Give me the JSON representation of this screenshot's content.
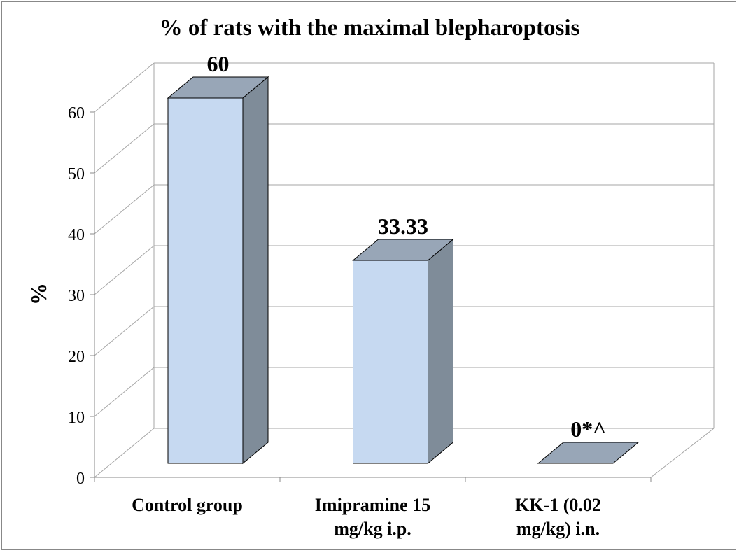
{
  "chart_data": {
    "type": "bar",
    "style": "3d",
    "title": "% of rats with the maximal blepharoptosis",
    "ylabel": "%",
    "xlabel": "",
    "categories": [
      "Control group",
      "Imipramine 15 mg/kg i.p.",
      "KK-1 (0.02 mg/kg) i.n."
    ],
    "category_lines": [
      [
        "Control group"
      ],
      [
        "Imipramine 15",
        "mg/kg i.p."
      ],
      [
        "KK-1 (0.02",
        "mg/kg) i.n."
      ]
    ],
    "values": [
      60,
      33.33,
      0
    ],
    "data_labels": [
      "60",
      "33.33",
      "0*^"
    ],
    "ylim": [
      0,
      60
    ],
    "yticks": [
      "0",
      "10",
      "20",
      "30",
      "40",
      "50",
      "60"
    ],
    "grid": true,
    "legend": "none",
    "colors": {
      "bar_front": "#c6d9f1",
      "bar_side": "#7f8c99",
      "bar_top": "#98a6b7",
      "grid": "#a6a6a6"
    }
  }
}
